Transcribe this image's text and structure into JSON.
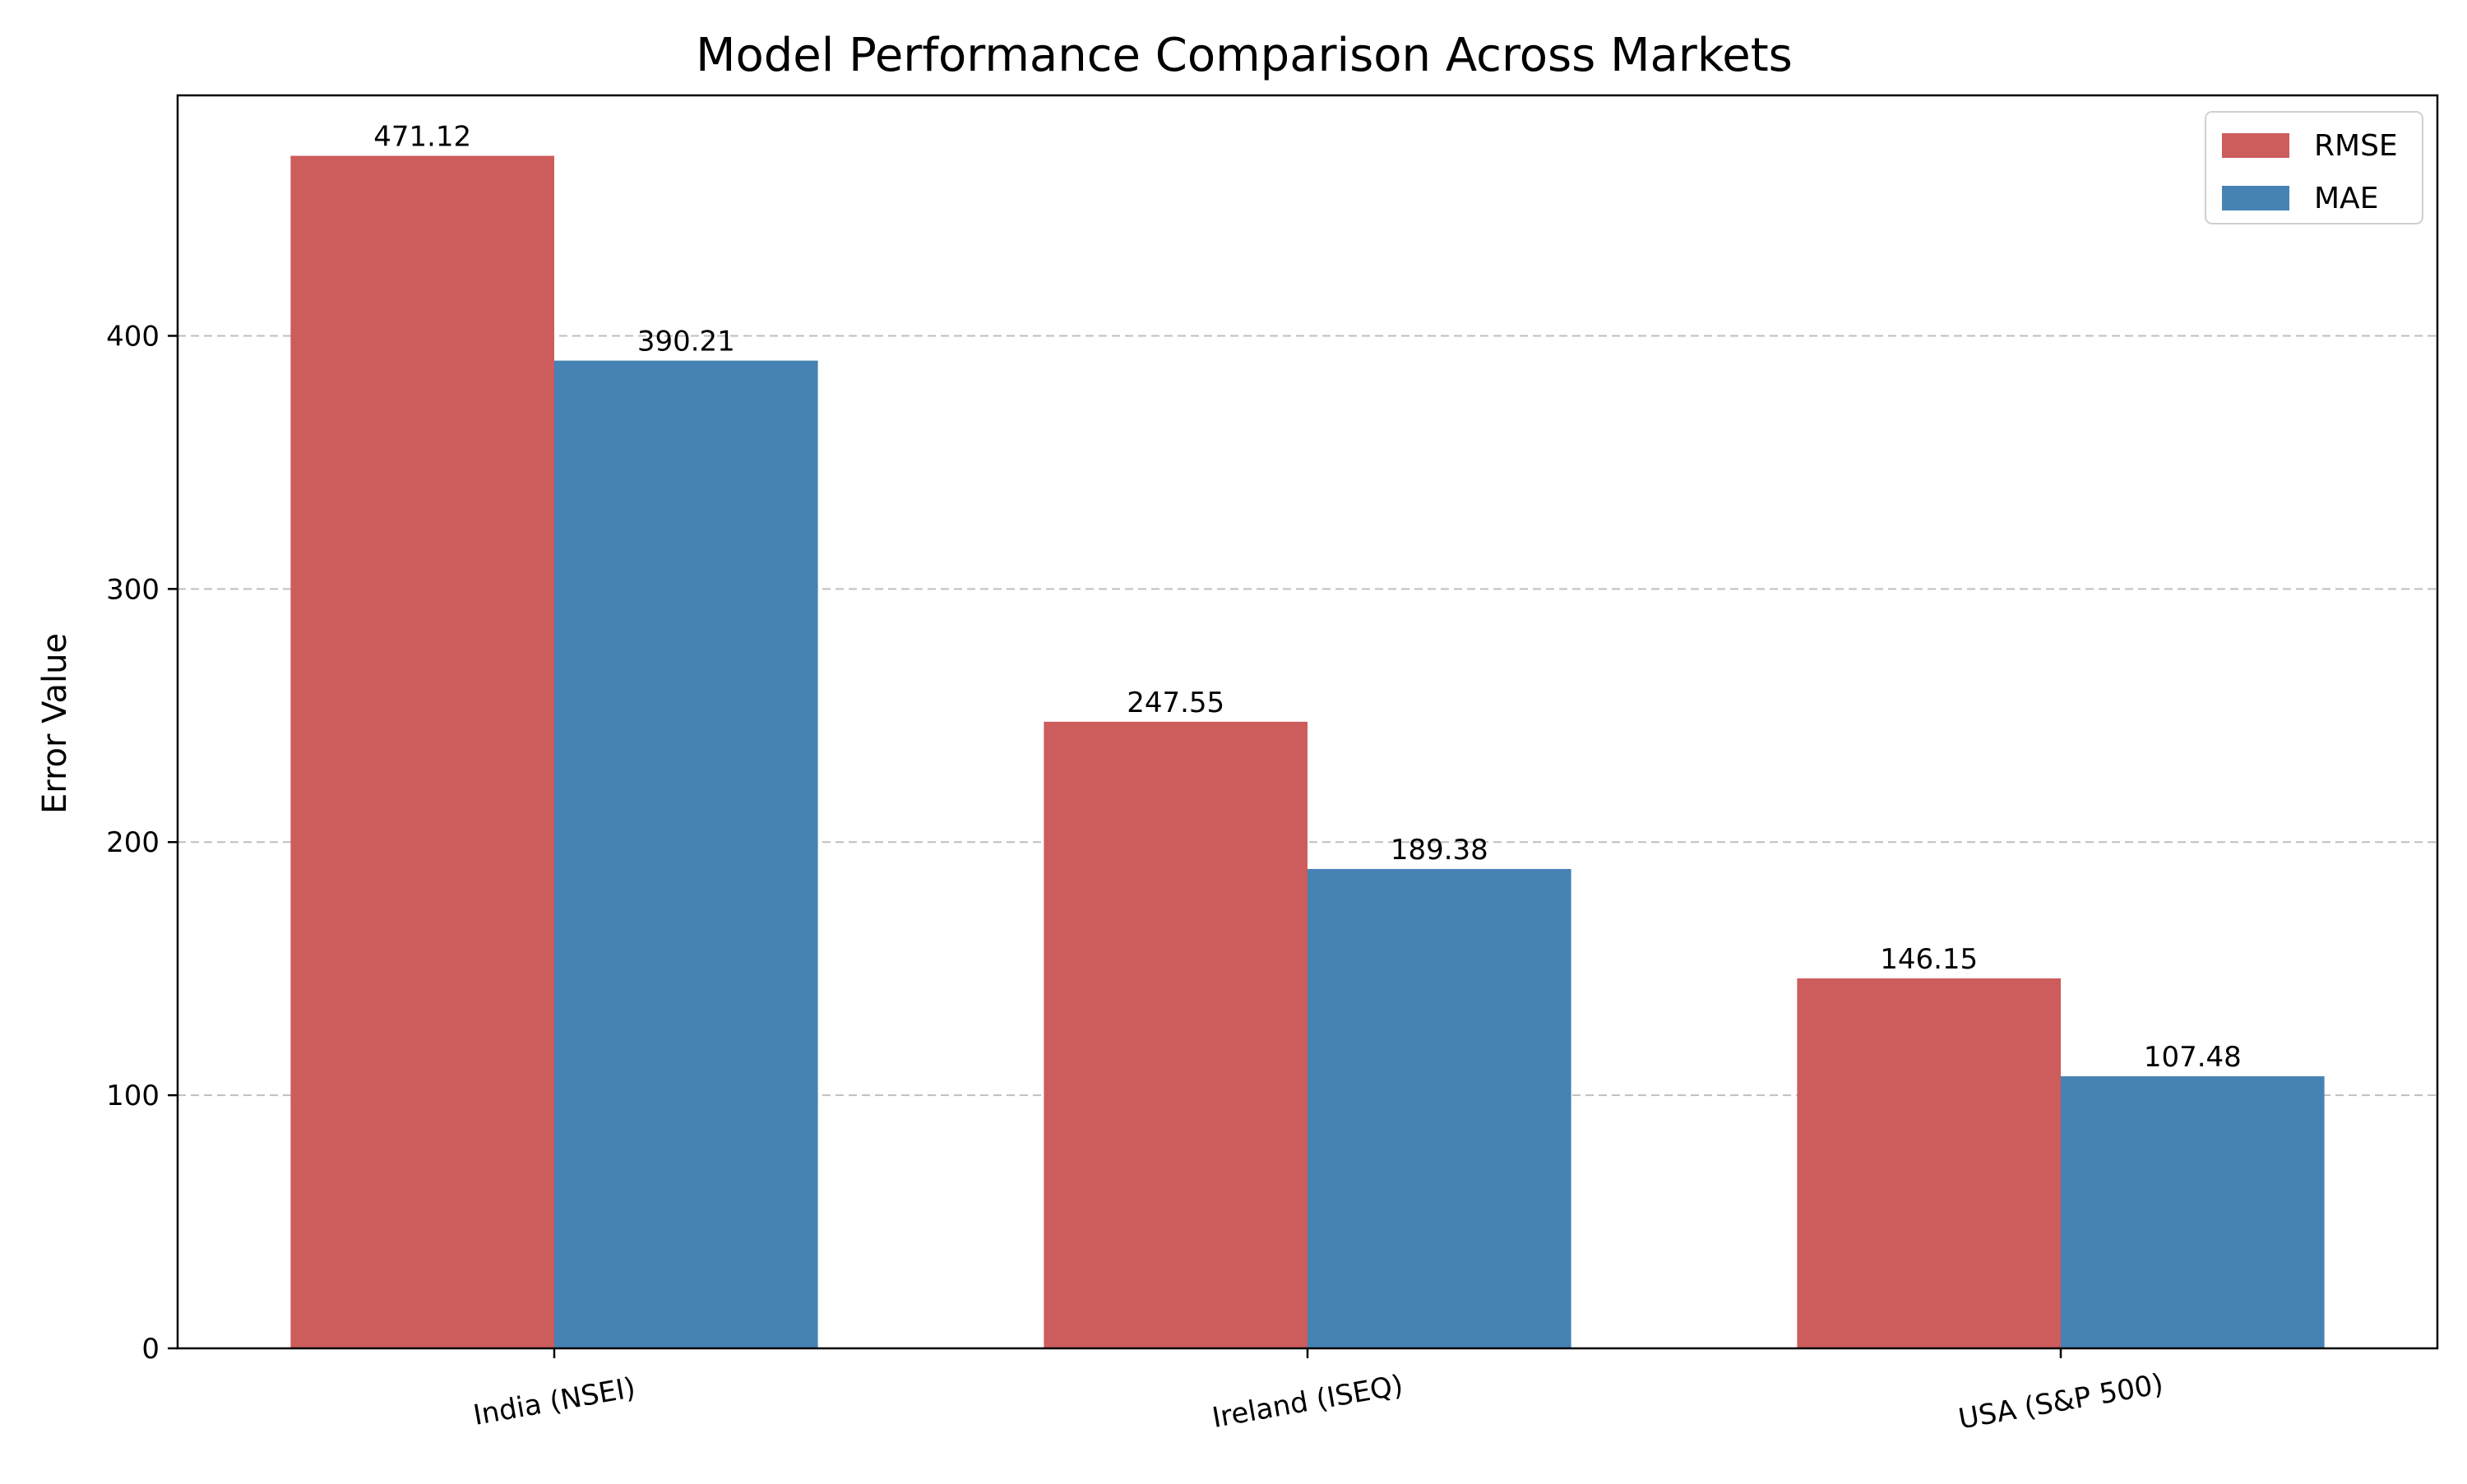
{
  "chart_data": {
    "type": "bar",
    "title": "Model Performance Comparison Across Markets",
    "xlabel": "",
    "ylabel": "Error Value",
    "categories": [
      "India (NSEI)",
      "Ireland (ISEQ)",
      "USA (S&P 500)"
    ],
    "series": [
      {
        "name": "RMSE",
        "values": [
          471.12,
          247.55,
          146.15
        ],
        "color": "#CD5C5C"
      },
      {
        "name": "MAE",
        "values": [
          390.21,
          189.38,
          107.48
        ],
        "color": "#4682B4"
      }
    ],
    "value_labels": [
      [
        "471.12",
        "247.55",
        "146.15"
      ],
      [
        "390.21",
        "189.38",
        "107.48"
      ]
    ],
    "ylim": [
      0,
      495
    ],
    "yticks": [
      0,
      100,
      200,
      300,
      400
    ],
    "grid": "y-dashed",
    "legend": "top-right",
    "xtick_rotation_deg": -10
  }
}
